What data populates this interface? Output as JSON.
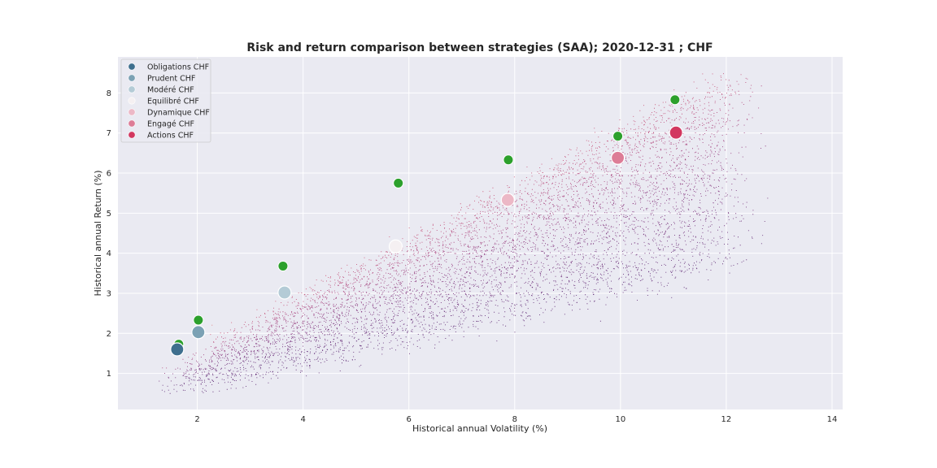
{
  "chart_data": {
    "type": "scatter",
    "title": "Risk and return comparison between strategies (SAA); 2020-12-31 ; CHF",
    "xlabel": "Historical annual Volatility (%)",
    "ylabel": "Historical annual Return (%)",
    "xlim": [
      0.5,
      14.2
    ],
    "ylim": [
      0.1,
      8.9
    ],
    "xticks": [
      2,
      4,
      6,
      8,
      10,
      12,
      14
    ],
    "yticks": [
      1,
      2,
      3,
      4,
      5,
      6,
      7,
      8
    ],
    "grid": true,
    "legend_position": "top-left",
    "background_color": "#eaeaf2",
    "cloud": {
      "description_points": 42000,
      "colormap": [
        "#f6b48f",
        "#e8816e",
        "#d5566f",
        "#ac3c77",
        "#7c2c78",
        "#5a2270"
      ]
    },
    "series": [
      {
        "name": "Obligations CHF",
        "color": "#3e6f8e",
        "x": 1.62,
        "y": 1.6
      },
      {
        "name": "Prudent CHF",
        "color": "#7ba1b4",
        "x": 2.02,
        "y": 2.03
      },
      {
        "name": "Modéré CHF",
        "color": "#b4cbd6",
        "x": 3.65,
        "y": 3.02
      },
      {
        "name": "Equilibré CHF",
        "color": "#f5f0f2",
        "x": 5.75,
        "y": 4.17
      },
      {
        "name": "Dynamique CHF",
        "color": "#ecb8c6",
        "x": 7.87,
        "y": 5.33
      },
      {
        "name": "Engagé CHF",
        "color": "#dd7c96",
        "x": 9.95,
        "y": 6.38
      },
      {
        "name": "Actions CHF",
        "color": "#d2375f",
        "x": 11.05,
        "y": 7.01
      }
    ],
    "efficient_points": {
      "color": "#2ca02c",
      "x": [
        1.65,
        2.02,
        3.62,
        5.8,
        7.88,
        9.95,
        11.03
      ],
      "y": [
        1.73,
        2.33,
        3.68,
        5.75,
        6.33,
        6.92,
        7.83
      ]
    }
  }
}
